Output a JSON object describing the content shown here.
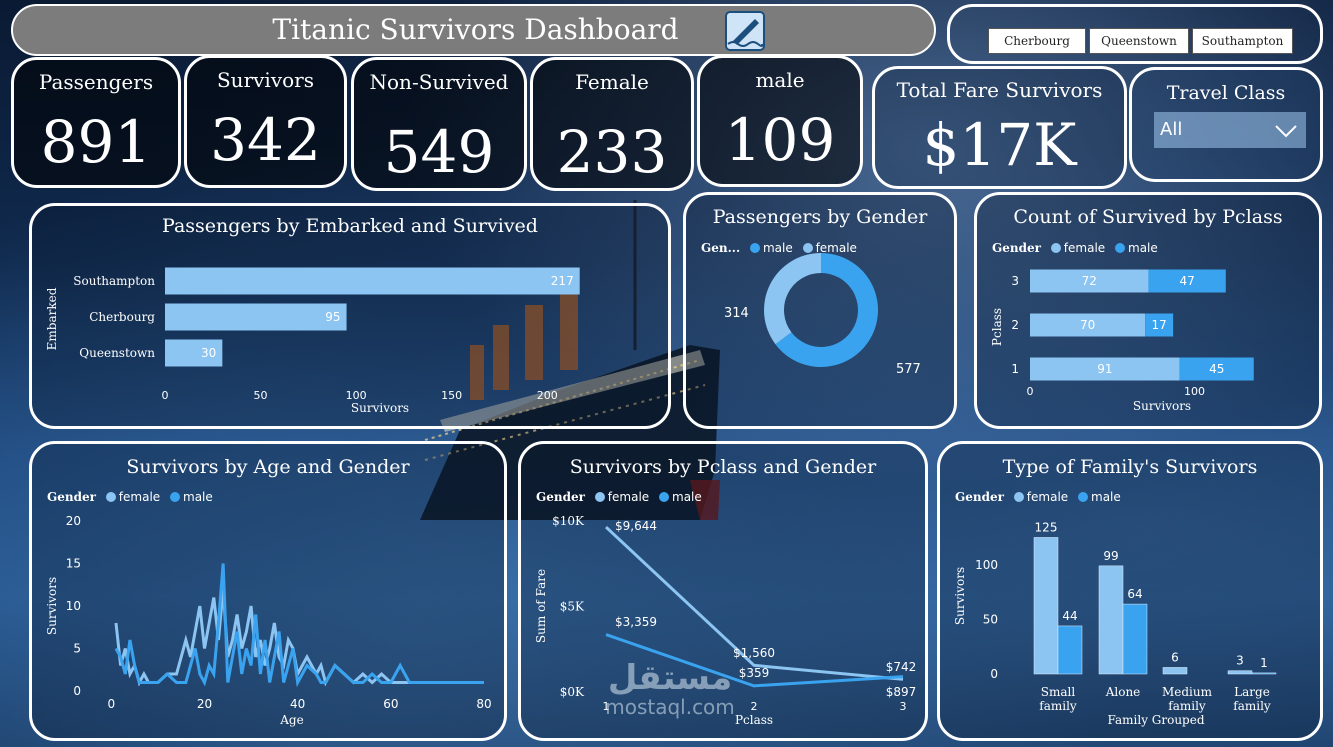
{
  "header": {
    "title": "Titanic Survivors Dashboard",
    "icon": "sinking-ship-icon"
  },
  "slicer_buttons": [
    "Cherbourg",
    "Queenstown",
    "Southampton"
  ],
  "kpis": [
    {
      "label": "Passengers",
      "value": "891"
    },
    {
      "label": "Survivors",
      "value": "342"
    },
    {
      "label": "Non-Survived",
      "value": "549"
    },
    {
      "label": "Female",
      "value": "233"
    },
    {
      "label": "male",
      "value": "109"
    },
    {
      "label": "Total Fare Survivors",
      "value": "$17K"
    }
  ],
  "travel_class": {
    "label": "Travel Class",
    "selected": "All",
    "icon": "chevron-down-icon"
  },
  "colors": {
    "female": "#8cc4f2",
    "male": "#3aa3ef",
    "bar": "#8cc4f2"
  },
  "embarked": {
    "title": "Passengers by Embarked and Survived",
    "chart_data": {
      "type": "bar",
      "orientation": "horizontal",
      "categories": [
        "Southampton",
        "Cherbourg",
        "Queenstown"
      ],
      "values": [
        217,
        95,
        30
      ],
      "xlabel": "Survivors",
      "ylabel": "Embarked",
      "xticks": [
        "0",
        "50",
        "100",
        "150",
        "200"
      ],
      "xlim": [
        0,
        225
      ]
    }
  },
  "gender": {
    "title": "Passengers by Gender",
    "legend_title": "Gen...",
    "legend": [
      "male",
      "female"
    ],
    "chart_data": {
      "type": "pie",
      "style": "donut",
      "labels": [
        "male",
        "female"
      ],
      "values": [
        577,
        314
      ],
      "value_labels": [
        "577",
        "314"
      ]
    }
  },
  "pclass_count": {
    "title": "Count of Survived by Pclass",
    "legend_title": "Gender",
    "legend": [
      "female",
      "male"
    ],
    "chart_data": {
      "type": "bar",
      "orientation": "horizontal",
      "stacked": true,
      "categories": [
        "3",
        "2",
        "1"
      ],
      "series": [
        {
          "name": "female",
          "values": [
            72,
            70,
            91
          ]
        },
        {
          "name": "male",
          "values": [
            47,
            17,
            45
          ]
        }
      ],
      "xlabel": "Survivors",
      "ylabel": "Pclass",
      "xticks": [
        "0",
        "100"
      ],
      "xlim": [
        0,
        155
      ]
    }
  },
  "age_gender": {
    "title": "Survivors by Age and Gender",
    "legend_title": "Gender",
    "legend": [
      "female",
      "male"
    ],
    "chart_data": {
      "type": "line",
      "xlabel": "Age",
      "ylabel": "Survivors",
      "xlim": [
        -2,
        80
      ],
      "ylim": [
        0,
        20
      ],
      "xticks": [
        "0",
        "20",
        "40",
        "60",
        "80"
      ],
      "yticks": [
        "0",
        "5",
        "10",
        "15",
        "20"
      ],
      "series": [
        {
          "name": "female",
          "x": [
            1,
            2,
            3,
            4,
            5,
            6,
            7,
            8,
            10,
            12,
            14,
            15,
            16,
            17,
            18,
            19,
            20,
            21,
            22,
            23,
            24,
            25,
            26,
            27,
            28,
            29,
            30,
            31,
            32,
            33,
            34,
            35,
            36,
            37,
            38,
            39,
            40,
            41,
            42,
            44,
            45,
            46,
            48,
            50,
            52,
            54,
            56,
            58,
            60,
            62,
            63,
            64,
            65,
            70,
            80
          ],
          "y": [
            8,
            3,
            5,
            2,
            3,
            1,
            2,
            1,
            1,
            2,
            2,
            4,
            6,
            4,
            7,
            10,
            5,
            8,
            11,
            6,
            12,
            4,
            6,
            9,
            5,
            7,
            10,
            4,
            6,
            3,
            5,
            8,
            4,
            3,
            6,
            5,
            2,
            3,
            4,
            2,
            3,
            1,
            3,
            2,
            1,
            2,
            1,
            2,
            1,
            1,
            1,
            1,
            1,
            1,
            1
          ]
        },
        {
          "name": "male",
          "x": [
            1,
            2,
            3,
            4,
            5,
            6,
            7,
            8,
            10,
            12,
            14,
            16,
            18,
            19,
            20,
            21,
            22,
            23,
            24,
            25,
            26,
            27,
            28,
            29,
            30,
            31,
            32,
            33,
            34,
            35,
            36,
            37,
            38,
            39,
            40,
            42,
            44,
            45,
            46,
            48,
            50,
            52,
            54,
            56,
            58,
            60,
            62,
            64,
            66,
            68,
            70,
            72,
            74,
            76,
            80
          ],
          "y": [
            5,
            4,
            2,
            6,
            3,
            1,
            1,
            1,
            1,
            2,
            1,
            1,
            5,
            2,
            1,
            3,
            2,
            8,
            15,
            1,
            4,
            7,
            2,
            5,
            3,
            9,
            2,
            6,
            1,
            4,
            7,
            1,
            3,
            5,
            1,
            3,
            2,
            1,
            1,
            3,
            2,
            1,
            1,
            2,
            1,
            1,
            3,
            1,
            1,
            1,
            1,
            1,
            1,
            1,
            1
          ]
        }
      ]
    }
  },
  "pclass_fare": {
    "title": "Survivors by Pclass and Gender",
    "legend_title": "Gender",
    "legend": [
      "female",
      "male"
    ],
    "chart_data": {
      "type": "line",
      "xlabel": "Pclass",
      "ylabel": "Sum of Fare",
      "categories": [
        "1",
        "2",
        "3"
      ],
      "yticks": [
        "$0K",
        "$5K",
        "$10K"
      ],
      "ylim": [
        0,
        10000
      ],
      "series": [
        {
          "name": "female",
          "values": [
            9644,
            1560,
            742
          ],
          "labels": [
            "$9,644",
            "$1,560",
            "$742"
          ]
        },
        {
          "name": "male",
          "values": [
            3359,
            359,
            897
          ],
          "labels": [
            "$3,359",
            "$359",
            "$897"
          ]
        }
      ]
    }
  },
  "family": {
    "title": "Type of Family's Survivors",
    "legend_title": "Gender",
    "legend": [
      "female",
      "male"
    ],
    "chart_data": {
      "type": "bar",
      "xlabel": "Family Grouped",
      "ylabel": "Survivors",
      "ylim": [
        0,
        130
      ],
      "yticks": [
        "0",
        "50",
        "100"
      ],
      "categories": [
        [
          "Small",
          "family"
        ],
        [
          "Alone"
        ],
        [
          "Medium",
          "family"
        ],
        [
          "Large",
          "family"
        ]
      ],
      "series": [
        {
          "name": "female",
          "values": [
            125,
            99,
            6,
            3
          ]
        },
        {
          "name": "male",
          "values": [
            44,
            64,
            null,
            1
          ]
        }
      ]
    }
  },
  "watermark": {
    "arabic": "مستقل",
    "latin": "mostaql.com"
  }
}
